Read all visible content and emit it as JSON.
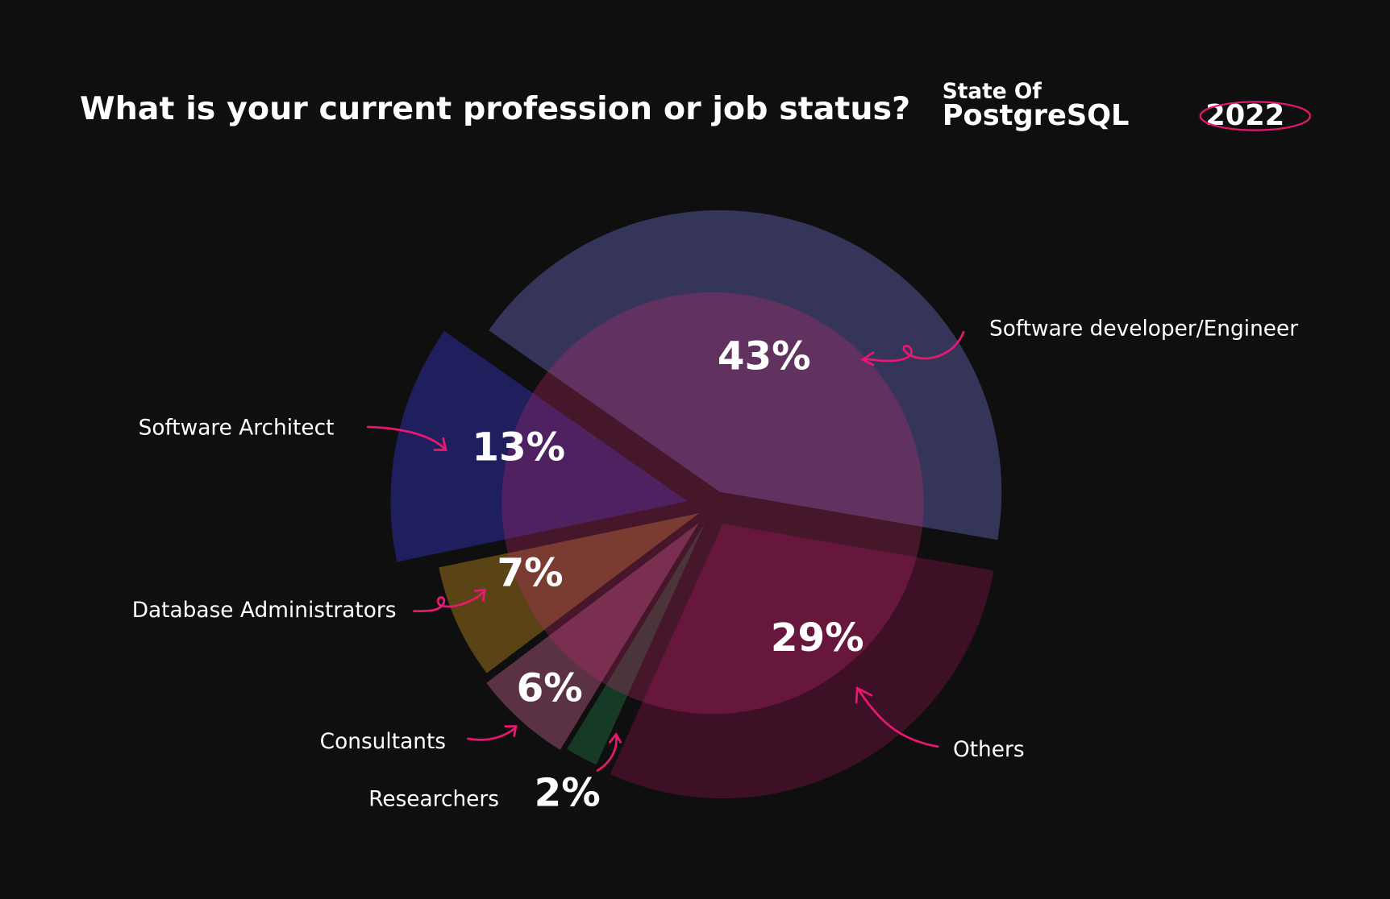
{
  "chart_data": {
    "type": "pie",
    "title": "What is your current profession or job status?",
    "brand": [
      "State Of",
      "PostgreSQL",
      "2022"
    ],
    "categories": [
      "Software developer/Engineer",
      "Others",
      "Researchers",
      "Consultants",
      "Database Administrators",
      "Software Architect"
    ],
    "values": [
      43,
      29,
      2,
      6,
      7,
      13
    ],
    "value_labels": [
      "43%",
      "29%",
      "2%",
      "6%",
      "7%",
      "13%"
    ],
    "colors": [
      "#35355a",
      "#3e1026",
      "#173a26",
      "#5a3244",
      "#5a4416",
      "#1e1f5c"
    ]
  }
}
